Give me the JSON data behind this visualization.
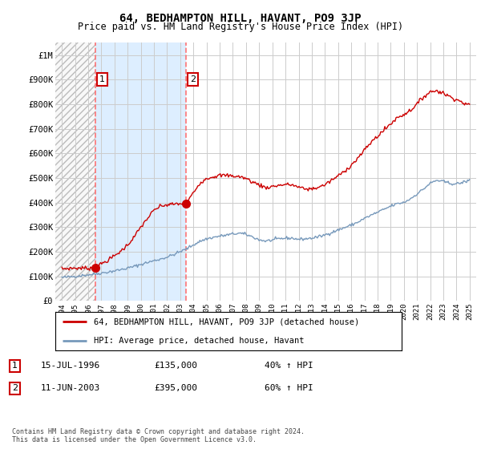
{
  "title": "64, BEDHAMPTON HILL, HAVANT, PO9 3JP",
  "subtitle": "Price paid vs. HM Land Registry's House Price Index (HPI)",
  "title_fontsize": 10,
  "subtitle_fontsize": 8.5,
  "bg_color": "#ffffff",
  "plot_bg_color": "#ffffff",
  "hatch_color": "#cccccc",
  "grid_color": "#cccccc",
  "light_blue_fill": "#ddeeff",
  "legend_label_red": "64, BEDHAMPTON HILL, HAVANT, PO9 3JP (detached house)",
  "legend_label_blue": "HPI: Average price, detached house, Havant",
  "purchase1_date_label": "15-JUL-1996",
  "purchase1_price_label": "£135,000",
  "purchase1_hpi_label": "40% ↑ HPI",
  "purchase2_date_label": "11-JUN-2003",
  "purchase2_price_label": "£395,000",
  "purchase2_hpi_label": "60% ↑ HPI",
  "footer": "Contains HM Land Registry data © Crown copyright and database right 2024.\nThis data is licensed under the Open Government Licence v3.0.",
  "purchase1_year": 1996.54,
  "purchase1_price": 135000,
  "purchase2_year": 2003.44,
  "purchase2_price": 395000,
  "red_color": "#cc0000",
  "blue_color": "#7799bb",
  "xlim": [
    1993.5,
    2025.5
  ],
  "ylim": [
    0,
    1050000
  ],
  "yticks": [
    0,
    100000,
    200000,
    300000,
    400000,
    500000,
    600000,
    700000,
    800000,
    900000,
    1000000
  ],
  "ytick_labels": [
    "£0",
    "£100K",
    "£200K",
    "£300K",
    "£400K",
    "£500K",
    "£600K",
    "£700K",
    "£800K",
    "£900K",
    "£1M"
  ],
  "xtick_years": [
    1994,
    1995,
    1996,
    1997,
    1998,
    1999,
    2000,
    2001,
    2002,
    2003,
    2004,
    2005,
    2006,
    2007,
    2008,
    2009,
    2010,
    2011,
    2012,
    2013,
    2014,
    2015,
    2016,
    2017,
    2018,
    2019,
    2020,
    2021,
    2022,
    2023,
    2024,
    2025
  ]
}
